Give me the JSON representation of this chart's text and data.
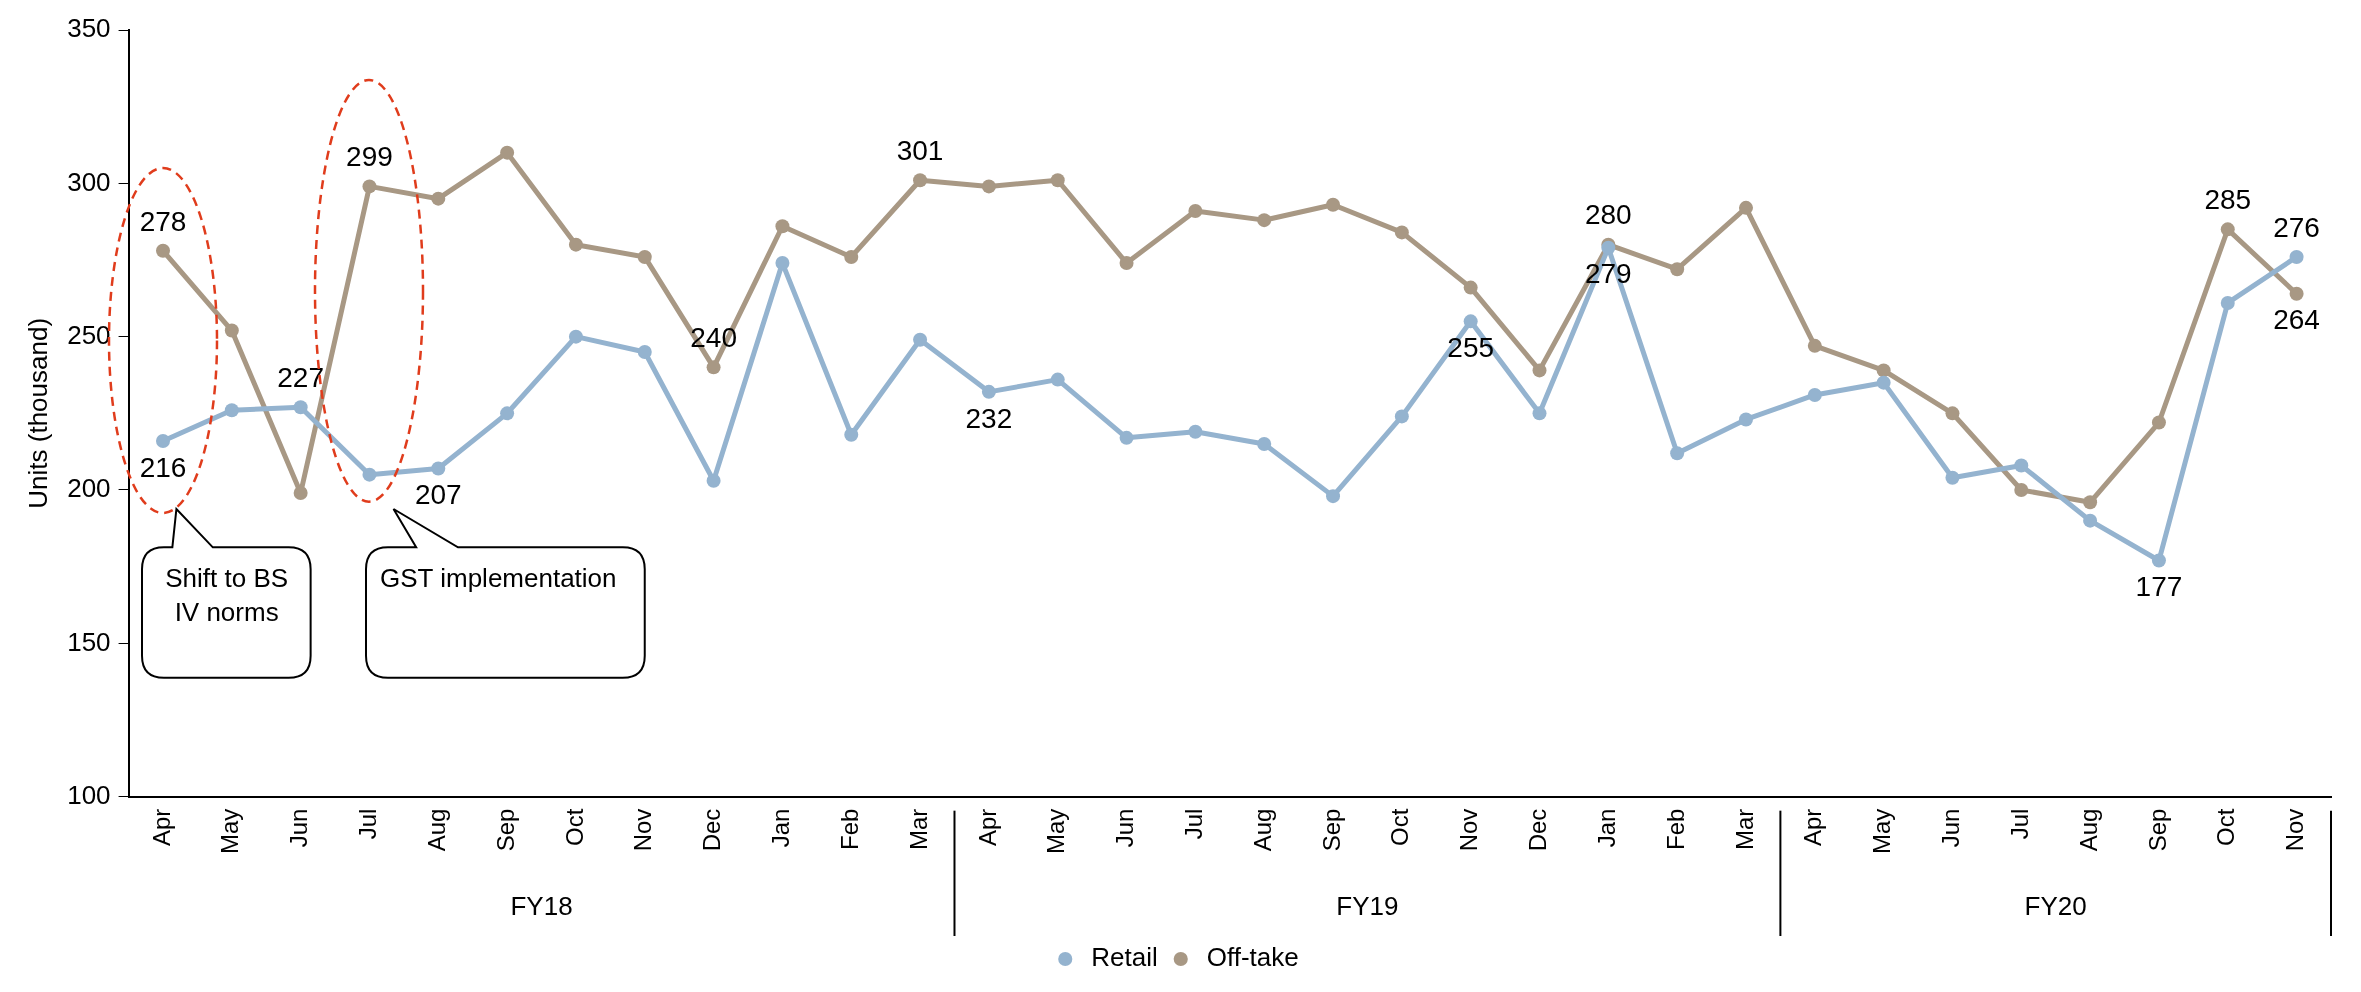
{
  "chart_data": {
    "type": "line",
    "ylabel": "Units (thousand)",
    "categories": [
      "Apr",
      "May",
      "Jun",
      "Jul",
      "Aug",
      "Sep",
      "Oct",
      "Nov",
      "Dec",
      "Jan",
      "Feb",
      "Mar",
      "Apr",
      "May",
      "Jun",
      "Jul",
      "Aug",
      "Sep",
      "Oct",
      "Nov",
      "Dec",
      "Jan",
      "Feb",
      "Mar",
      "Apr",
      "May",
      "Jun",
      "Jul",
      "Aug",
      "Sep",
      "Oct",
      "Nov"
    ],
    "series": [
      {
        "name": "Retail",
        "color": "#94b3cf",
        "values": [
          216,
          226,
          227,
          205,
          207,
          225,
          250,
          245,
          203,
          274,
          218,
          249,
          232,
          236,
          217,
          219,
          215,
          198,
          224,
          255,
          225,
          279,
          212,
          223,
          231,
          235,
          204,
          208,
          190,
          177,
          261,
          276
        ],
        "value_labels": [
          "216",
          null,
          "227",
          null,
          "207",
          null,
          null,
          null,
          null,
          null,
          null,
          null,
          "232",
          null,
          null,
          null,
          null,
          null,
          null,
          "255",
          null,
          "279",
          null,
          null,
          null,
          null,
          null,
          null,
          null,
          "177",
          null,
          "276"
        ]
      },
      {
        "name": "Off-take",
        "color": "#a89884",
        "values": [
          278,
          252,
          199,
          299,
          295,
          310,
          280,
          276,
          240,
          286,
          276,
          301,
          299,
          301,
          274,
          291,
          288,
          293,
          284,
          266,
          239,
          280,
          272,
          292,
          247,
          239,
          225,
          200,
          196,
          222,
          285,
          264
        ],
        "value_labels": [
          "278",
          null,
          null,
          "299",
          null,
          null,
          null,
          null,
          "240",
          null,
          null,
          "301",
          null,
          null,
          null,
          null,
          null,
          null,
          null,
          null,
          null,
          "280",
          null,
          null,
          null,
          null,
          null,
          null,
          null,
          null,
          "285",
          "264"
        ]
      }
    ],
    "ylim": [
      100,
      350
    ],
    "yticks": [
      100,
      150,
      200,
      250,
      300,
      350
    ],
    "legend": "bottom",
    "marker": "circle",
    "line_style": "solid",
    "annotations": [
      "Shift to BS IV norms",
      "GST implementation",
      "FY18",
      "FY19",
      "FY20"
    ]
  }
}
